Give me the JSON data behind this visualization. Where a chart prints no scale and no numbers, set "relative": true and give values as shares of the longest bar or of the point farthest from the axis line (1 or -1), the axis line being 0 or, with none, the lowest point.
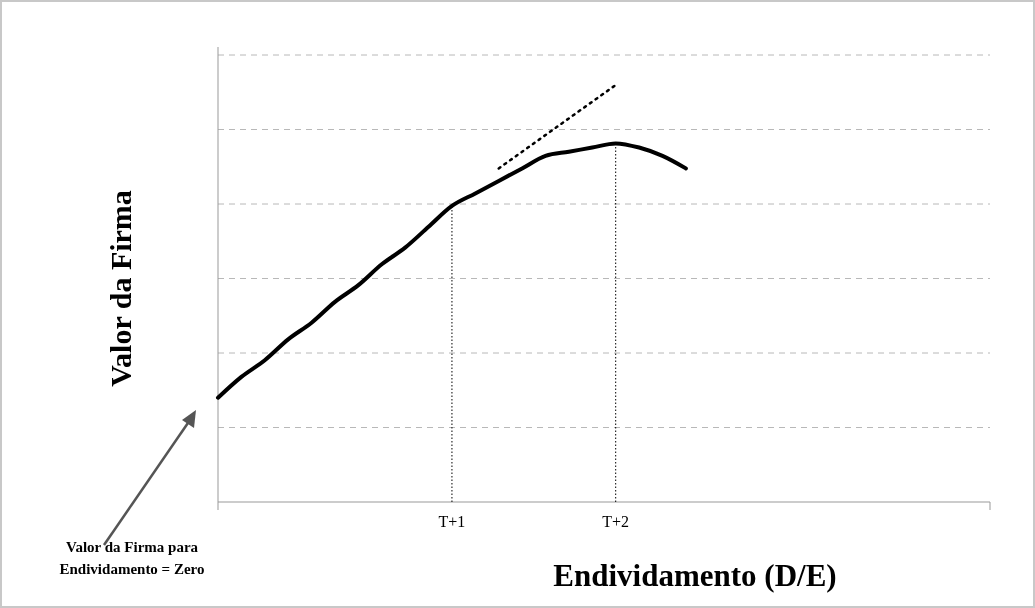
{
  "chart_data": {
    "type": "line",
    "relative": true,
    "xlabel": "Endividamento (D/E)",
    "ylabel": "Valor da Firma",
    "grid": "y",
    "tick_labels": "x",
    "categories": [
      null,
      null,
      null,
      null,
      null,
      null,
      null,
      null,
      null,
      null,
      "T+1",
      null,
      null,
      null,
      null,
      null,
      null,
      "T+2",
      null,
      null,
      null,
      null,
      null,
      null,
      null,
      null,
      null,
      null,
      null,
      null,
      null,
      null,
      null,
      null
    ],
    "series": [
      {
        "color": "#000000",
        "line_style": "solid",
        "values": [
          0.25,
          0.3,
          0.34,
          0.39,
          0.43,
          0.48,
          0.52,
          0.57,
          0.61,
          0.66,
          0.71,
          0.74,
          0.77,
          0.8,
          0.83,
          0.84,
          0.85,
          0.86,
          0.85,
          0.83,
          0.8,
          null,
          null,
          null,
          null,
          null,
          null,
          null,
          null,
          null,
          null,
          null,
          null,
          null
        ]
      },
      {
        "color": "#000000",
        "line_style": "dotted",
        "values": [
          null,
          null,
          null,
          null,
          null,
          null,
          null,
          null,
          null,
          null,
          null,
          null,
          0.8,
          0.84,
          0.88,
          0.92,
          0.96,
          1.0,
          null,
          null,
          null,
          null,
          null,
          null,
          null,
          null,
          null,
          null,
          null,
          null,
          null,
          null,
          null,
          null
        ]
      }
    ],
    "ref_lines": [
      {
        "axis": "x",
        "value": "T+1",
        "label": null,
        "line_style": "dotted",
        "color": "#000000"
      },
      {
        "axis": "x",
        "value": "T+2",
        "label": null,
        "line_style": "dotted",
        "color": "#000000"
      }
    ],
    "annotations": [
      "Valor da Firma para Endividamento = Zero"
    ]
  }
}
